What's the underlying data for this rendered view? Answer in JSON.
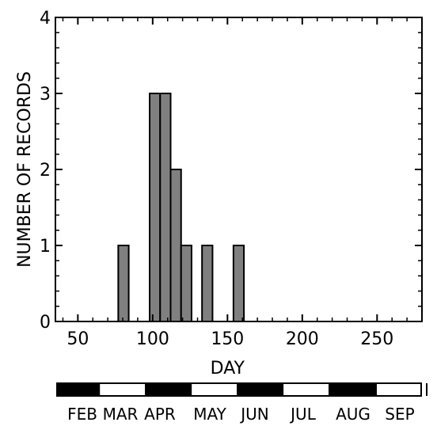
{
  "chart_data": {
    "type": "bar",
    "xlabel": "DAY",
    "ylabel": "NUMBER OF RECORDS",
    "xlim": [
      35,
      280
    ],
    "ylim": [
      0,
      4
    ],
    "x_ticks": [
      50,
      100,
      150,
      200,
      250
    ],
    "y_ticks": [
      0,
      1,
      2,
      3,
      4
    ],
    "bin_width": 7,
    "bars": [
      {
        "x": 80.5,
        "value": 1
      },
      {
        "x": 101.5,
        "value": 3
      },
      {
        "x": 108.5,
        "value": 3
      },
      {
        "x": 115.5,
        "value": 2
      },
      {
        "x": 122.5,
        "value": 1
      },
      {
        "x": 136.5,
        "value": 1
      },
      {
        "x": 157.5,
        "value": 1
      }
    ],
    "bar_color": "#808080",
    "months": [
      "FEB",
      "MAR",
      "APR",
      "MAY",
      "JUN",
      "JUL",
      "AUG",
      "SEP"
    ],
    "month_bar": [
      {
        "start": 32,
        "end": 60,
        "fill": "#000000"
      },
      {
        "start": 60,
        "end": 91,
        "fill": "#ffffff"
      },
      {
        "start": 91,
        "end": 121,
        "fill": "#000000"
      },
      {
        "start": 121,
        "end": 152,
        "fill": "#ffffff"
      },
      {
        "start": 152,
        "end": 182,
        "fill": "#000000"
      },
      {
        "start": 182,
        "end": 213,
        "fill": "#ffffff"
      },
      {
        "start": 213,
        "end": 244,
        "fill": "#000000"
      },
      {
        "start": 244,
        "end": 274,
        "fill": "#ffffff"
      }
    ]
  }
}
